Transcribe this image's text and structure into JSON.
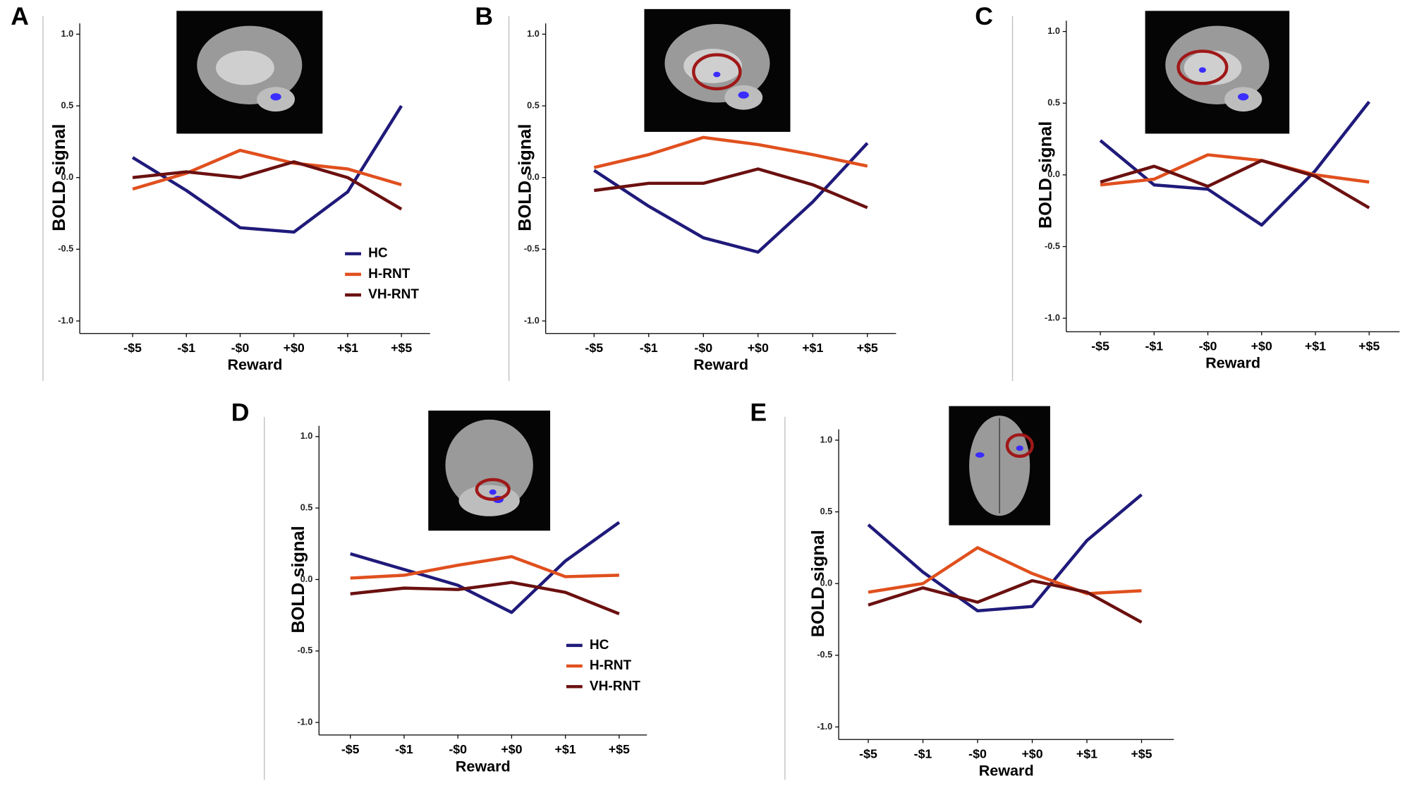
{
  "chart_data": [
    {
      "type": "line",
      "panel": "A",
      "y_label": "BOLD signal",
      "x_label": "Reward",
      "categories": [
        "-$5",
        "-$1",
        "-$0",
        "+$0",
        "+$1",
        "+$5"
      ],
      "ylim": [
        -1,
        1
      ],
      "yticks": [
        {
          "value": -1,
          "label": "-1.0"
        },
        -0.5,
        {
          "value": 0,
          "label": "0.0"
        },
        0.5,
        {
          "value": 1,
          "label": "1.0"
        }
      ],
      "legend": "lower right",
      "series": [
        {
          "name": "HC",
          "color": "#1f1a7a",
          "values": [
            0.14,
            -0.09,
            -0.35,
            -0.38,
            -0.1,
            0.5
          ]
        },
        {
          "name": "H-RNT",
          "color": "#e0501e",
          "values": [
            -0.08,
            0.03,
            0.19,
            0.1,
            0.06,
            -0.05
          ]
        },
        {
          "name": "VH-RNT",
          "color": "#6b1010",
          "values": [
            0.0,
            0.04,
            0.0,
            0.11,
            0.0,
            -0.22
          ]
        }
      ]
    },
    {
      "type": "line",
      "panel": "B",
      "y_label": "BOLD signal",
      "x_label": "Reward",
      "categories": [
        "-$5",
        "-$1",
        "-$0",
        "+$0",
        "+$1",
        "+$5"
      ],
      "ylim": [
        -1,
        1
      ],
      "yticks": [
        {
          "value": -1,
          "label": "-1.0"
        },
        -0.5,
        {
          "value": 0,
          "label": "0.0"
        },
        0.5,
        {
          "value": 1,
          "label": "1.0"
        }
      ],
      "series": [
        {
          "color": "#1f1a7a",
          "values": [
            0.05,
            -0.2,
            -0.42,
            -0.52,
            -0.17,
            0.24
          ]
        },
        {
          "color": "#e0501e",
          "values": [
            0.07,
            0.16,
            0.28,
            0.23,
            0.16,
            0.08
          ]
        },
        {
          "color": "#6b1010",
          "values": [
            -0.09,
            -0.04,
            -0.04,
            0.06,
            -0.05,
            -0.21
          ]
        }
      ]
    },
    {
      "type": "line",
      "panel": "C",
      "y_label": "BOLD signal",
      "x_label": "Reward",
      "categories": [
        "-$5",
        "-$1",
        "-$0",
        "+$0",
        "+$1",
        "+$5"
      ],
      "ylim": [
        -1,
        1
      ],
      "yticks": [
        {
          "value": -1,
          "label": "-1.0"
        },
        -0.5,
        {
          "value": 0,
          "label": "0.0"
        },
        0.5,
        {
          "value": 1,
          "label": "1.0"
        }
      ],
      "series": [
        {
          "color": "#1f1a7a",
          "values": [
            0.24,
            -0.07,
            -0.1,
            -0.35,
            0.03,
            0.51
          ]
        },
        {
          "color": "#e0501e",
          "values": [
            -0.07,
            -0.03,
            0.14,
            0.1,
            0.0,
            -0.05
          ]
        },
        {
          "color": "#6b1010",
          "values": [
            -0.05,
            0.06,
            -0.08,
            0.1,
            -0.01,
            -0.23
          ]
        }
      ]
    },
    {
      "type": "line",
      "panel": "D",
      "y_label": "BOLD signal",
      "x_label": "Reward",
      "categories": [
        "-$5",
        "-$1",
        "-$0",
        "+$0",
        "+$1",
        "+$5"
      ],
      "ylim": [
        -1,
        1
      ],
      "yticks": [
        {
          "value": -1,
          "label": "-1.0"
        },
        -0.5,
        {
          "value": 0,
          "label": "0.0"
        },
        0.5,
        {
          "value": 1,
          "label": "1.0"
        }
      ],
      "legend": "lower right",
      "series": [
        {
          "name": "HC",
          "color": "#1f1a7a",
          "values": [
            0.18,
            0.07,
            -0.04,
            -0.23,
            0.13,
            0.4
          ]
        },
        {
          "name": "H-RNT",
          "color": "#e0501e",
          "values": [
            0.01,
            0.03,
            0.1,
            0.16,
            0.02,
            0.03
          ]
        },
        {
          "name": "VH-RNT",
          "color": "#6b1010",
          "values": [
            -0.1,
            -0.06,
            -0.07,
            -0.02,
            -0.09,
            -0.24
          ]
        }
      ]
    },
    {
      "type": "line",
      "panel": "E",
      "y_label": "BOLD signal",
      "x_label": "Reward",
      "categories": [
        "-$5",
        "-$1",
        "-$0",
        "+$0",
        "+$1",
        "+$5"
      ],
      "ylim": [
        -1,
        1
      ],
      "yticks": [
        {
          "value": -1,
          "label": "-1.0"
        },
        -0.5,
        {
          "value": 0,
          "label": "0.0"
        },
        0.5,
        {
          "value": 1,
          "label": "1.0"
        }
      ],
      "series": [
        {
          "color": "#1f1a7a",
          "values": [
            0.41,
            0.08,
            -0.19,
            -0.16,
            0.3,
            0.62
          ]
        },
        {
          "color": "#e0501e",
          "values": [
            -0.06,
            0.0,
            0.25,
            0.07,
            -0.07,
            -0.05
          ]
        },
        {
          "color": "#6b1010",
          "values": [
            -0.15,
            -0.03,
            -0.13,
            0.02,
            -0.06,
            -0.27
          ]
        }
      ]
    }
  ]
}
